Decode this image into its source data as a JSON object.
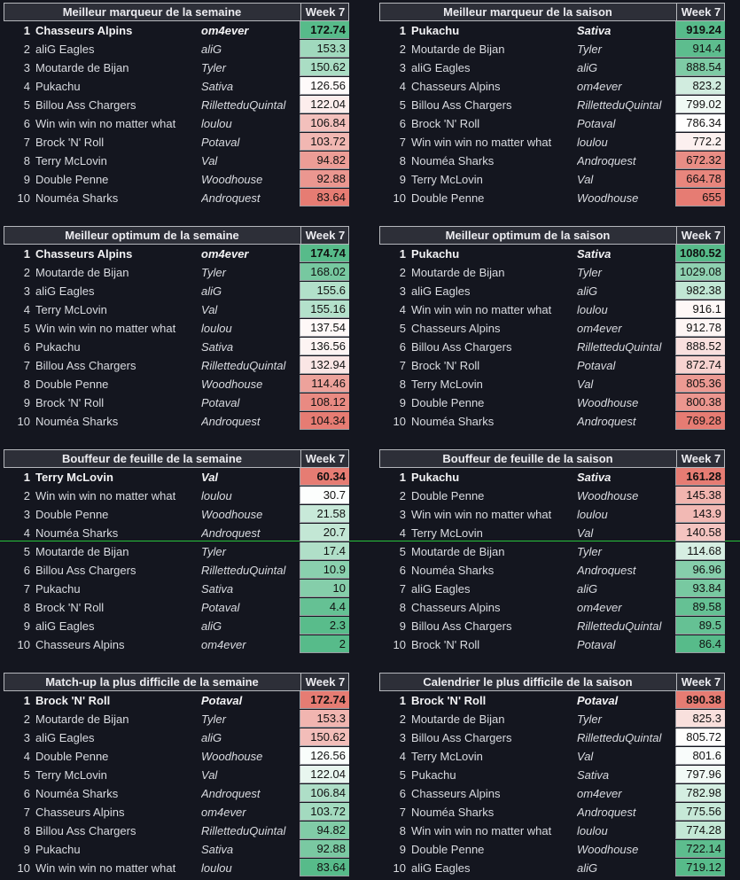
{
  "week_label": "Week 7",
  "tables": [
    {
      "title": "Meilleur marqueur de la semaine",
      "scale": "high-good",
      "rows": [
        {
          "rank": "1",
          "team": "Chasseurs Alpins",
          "owner": "om4ever",
          "value": "172.74"
        },
        {
          "rank": "2",
          "team": "aliG Eagles",
          "owner": "aliG",
          "value": "153.3"
        },
        {
          "rank": "3",
          "team": "Moutarde de Bijan",
          "owner": "Tyler",
          "value": "150.62"
        },
        {
          "rank": "4",
          "team": "Pukachu",
          "owner": "Sativa",
          "value": "126.56"
        },
        {
          "rank": "5",
          "team": "Billou Ass Chargers",
          "owner": "RilletteduQuintal",
          "value": "122.04"
        },
        {
          "rank": "6",
          "team": "Win win win no matter what",
          "owner": "loulou",
          "value": "106.84"
        },
        {
          "rank": "7",
          "team": "Brock 'N' Roll",
          "owner": "Potaval",
          "value": "103.72"
        },
        {
          "rank": "8",
          "team": "Terry McLovin",
          "owner": "Val",
          "value": "94.82"
        },
        {
          "rank": "9",
          "team": "Double Penne",
          "owner": "Woodhouse",
          "value": "92.88"
        },
        {
          "rank": "10",
          "team": "Nouméa Sharks",
          "owner": "Androquest",
          "value": "83.64"
        }
      ]
    },
    {
      "title": "Meilleur marqueur de la saison",
      "scale": "high-good",
      "rows": [
        {
          "rank": "1",
          "team": "Pukachu",
          "owner": "Sativa",
          "value": "919.24"
        },
        {
          "rank": "2",
          "team": "Moutarde de Bijan",
          "owner": "Tyler",
          "value": "914.4"
        },
        {
          "rank": "3",
          "team": "aliG Eagles",
          "owner": "aliG",
          "value": "888.54"
        },
        {
          "rank": "4",
          "team": "Chasseurs Alpins",
          "owner": "om4ever",
          "value": "823.2"
        },
        {
          "rank": "5",
          "team": "Billou Ass Chargers",
          "owner": "RilletteduQuintal",
          "value": "799.02"
        },
        {
          "rank": "6",
          "team": "Brock 'N' Roll",
          "owner": "Potaval",
          "value": "786.34"
        },
        {
          "rank": "7",
          "team": "Win win win no matter what",
          "owner": "loulou",
          "value": "772.2"
        },
        {
          "rank": "8",
          "team": "Nouméa Sharks",
          "owner": "Androquest",
          "value": "672.32"
        },
        {
          "rank": "9",
          "team": "Terry McLovin",
          "owner": "Val",
          "value": "664.78"
        },
        {
          "rank": "10",
          "team": "Double Penne",
          "owner": "Woodhouse",
          "value": "655"
        }
      ]
    },
    {
      "title": "Meilleur optimum de la semaine",
      "scale": "high-good",
      "rows": [
        {
          "rank": "1",
          "team": "Chasseurs Alpins",
          "owner": "om4ever",
          "value": "174.74"
        },
        {
          "rank": "2",
          "team": "Moutarde de Bijan",
          "owner": "Tyler",
          "value": "168.02"
        },
        {
          "rank": "3",
          "team": "aliG Eagles",
          "owner": "aliG",
          "value": "155.6"
        },
        {
          "rank": "4",
          "team": "Terry McLovin",
          "owner": "Val",
          "value": "155.16"
        },
        {
          "rank": "5",
          "team": "Win win win no matter what",
          "owner": "loulou",
          "value": "137.54"
        },
        {
          "rank": "6",
          "team": "Pukachu",
          "owner": "Sativa",
          "value": "136.56"
        },
        {
          "rank": "7",
          "team": "Billou Ass Chargers",
          "owner": "RilletteduQuintal",
          "value": "132.94"
        },
        {
          "rank": "8",
          "team": "Double Penne",
          "owner": "Woodhouse",
          "value": "114.46"
        },
        {
          "rank": "9",
          "team": "Brock 'N' Roll",
          "owner": "Potaval",
          "value": "108.12"
        },
        {
          "rank": "10",
          "team": "Nouméa Sharks",
          "owner": "Androquest",
          "value": "104.34"
        }
      ]
    },
    {
      "title": "Meilleur optimum de la saison",
      "scale": "high-good",
      "rows": [
        {
          "rank": "1",
          "team": "Pukachu",
          "owner": "Sativa",
          "value": "1080.52"
        },
        {
          "rank": "2",
          "team": "Moutarde de Bijan",
          "owner": "Tyler",
          "value": "1029.08"
        },
        {
          "rank": "3",
          "team": "aliG Eagles",
          "owner": "aliG",
          "value": "982.38"
        },
        {
          "rank": "4",
          "team": "Win win win no matter what",
          "owner": "loulou",
          "value": "916.1"
        },
        {
          "rank": "5",
          "team": "Chasseurs Alpins",
          "owner": "om4ever",
          "value": "912.78"
        },
        {
          "rank": "6",
          "team": "Billou Ass Chargers",
          "owner": "RilletteduQuintal",
          "value": "888.52"
        },
        {
          "rank": "7",
          "team": "Brock 'N' Roll",
          "owner": "Potaval",
          "value": "872.74"
        },
        {
          "rank": "8",
          "team": "Terry McLovin",
          "owner": "Val",
          "value": "805.36"
        },
        {
          "rank": "9",
          "team": "Double Penne",
          "owner": "Woodhouse",
          "value": "800.38"
        },
        {
          "rank": "10",
          "team": "Nouméa Sharks",
          "owner": "Androquest",
          "value": "769.28"
        }
      ]
    },
    {
      "title": "Bouffeur de feuille de la semaine",
      "scale": "high-bad",
      "rows": [
        {
          "rank": "1",
          "team": "Terry McLovin",
          "owner": "Val",
          "value": "60.34"
        },
        {
          "rank": "2",
          "team": "Win win win no matter what",
          "owner": "loulou",
          "value": "30.7"
        },
        {
          "rank": "3",
          "team": "Double Penne",
          "owner": "Woodhouse",
          "value": "21.58"
        },
        {
          "rank": "4",
          "team": "Nouméa Sharks",
          "owner": "Androquest",
          "value": "20.7"
        },
        {
          "rank": "5",
          "team": "Moutarde de Bijan",
          "owner": "Tyler",
          "value": "17.4"
        },
        {
          "rank": "6",
          "team": "Billou Ass Chargers",
          "owner": "RilletteduQuintal",
          "value": "10.9"
        },
        {
          "rank": "7",
          "team": "Pukachu",
          "owner": "Sativa",
          "value": "10"
        },
        {
          "rank": "8",
          "team": "Brock 'N' Roll",
          "owner": "Potaval",
          "value": "4.4"
        },
        {
          "rank": "9",
          "team": "aliG Eagles",
          "owner": "aliG",
          "value": "2.3"
        },
        {
          "rank": "10",
          "team": "Chasseurs Alpins",
          "owner": "om4ever",
          "value": "2"
        }
      ]
    },
    {
      "title": "Bouffeur de feuille de la saison",
      "scale": "high-bad",
      "rows": [
        {
          "rank": "1",
          "team": "Pukachu",
          "owner": "Sativa",
          "value": "161.28"
        },
        {
          "rank": "2",
          "team": "Double Penne",
          "owner": "Woodhouse",
          "value": "145.38"
        },
        {
          "rank": "3",
          "team": "Win win win no matter what",
          "owner": "loulou",
          "value": "143.9"
        },
        {
          "rank": "4",
          "team": "Terry McLovin",
          "owner": "Val",
          "value": "140.58"
        },
        {
          "rank": "5",
          "team": "Moutarde de Bijan",
          "owner": "Tyler",
          "value": "114.68"
        },
        {
          "rank": "6",
          "team": "Nouméa Sharks",
          "owner": "Androquest",
          "value": "96.96"
        },
        {
          "rank": "7",
          "team": "aliG Eagles",
          "owner": "aliG",
          "value": "93.84"
        },
        {
          "rank": "8",
          "team": "Chasseurs Alpins",
          "owner": "om4ever",
          "value": "89.58"
        },
        {
          "rank": "9",
          "team": "Billou Ass Chargers",
          "owner": "RilletteduQuintal",
          "value": "89.5"
        },
        {
          "rank": "10",
          "team": "Brock 'N' Roll",
          "owner": "Potaval",
          "value": "86.4"
        }
      ]
    },
    {
      "title": "Match-up la plus difficile de la semaine",
      "scale": "high-bad",
      "rows": [
        {
          "rank": "1",
          "team": "Brock 'N' Roll",
          "owner": "Potaval",
          "value": "172.74"
        },
        {
          "rank": "2",
          "team": "Moutarde de Bijan",
          "owner": "Tyler",
          "value": "153.3"
        },
        {
          "rank": "3",
          "team": "aliG Eagles",
          "owner": "aliG",
          "value": "150.62"
        },
        {
          "rank": "4",
          "team": "Double Penne",
          "owner": "Woodhouse",
          "value": "126.56"
        },
        {
          "rank": "5",
          "team": "Terry McLovin",
          "owner": "Val",
          "value": "122.04"
        },
        {
          "rank": "6",
          "team": "Nouméa Sharks",
          "owner": "Androquest",
          "value": "106.84"
        },
        {
          "rank": "7",
          "team": "Chasseurs Alpins",
          "owner": "om4ever",
          "value": "103.72"
        },
        {
          "rank": "8",
          "team": "Billou Ass Chargers",
          "owner": "RilletteduQuintal",
          "value": "94.82"
        },
        {
          "rank": "9",
          "team": "Pukachu",
          "owner": "Sativa",
          "value": "92.88"
        },
        {
          "rank": "10",
          "team": "Win win win no matter what",
          "owner": "loulou",
          "value": "83.64"
        }
      ]
    },
    {
      "title": "Calendrier le plus difficile de la saison",
      "scale": "high-bad",
      "rows": [
        {
          "rank": "1",
          "team": "Brock 'N' Roll",
          "owner": "Potaval",
          "value": "890.38"
        },
        {
          "rank": "2",
          "team": "Moutarde de Bijan",
          "owner": "Tyler",
          "value": "825.3"
        },
        {
          "rank": "3",
          "team": "Billou Ass Chargers",
          "owner": "RilletteduQuintal",
          "value": "805.72"
        },
        {
          "rank": "4",
          "team": "Terry McLovin",
          "owner": "Val",
          "value": "801.6"
        },
        {
          "rank": "5",
          "team": "Pukachu",
          "owner": "Sativa",
          "value": "797.96"
        },
        {
          "rank": "6",
          "team": "Chasseurs Alpins",
          "owner": "om4ever",
          "value": "782.98"
        },
        {
          "rank": "7",
          "team": "Nouméa Sharks",
          "owner": "Androquest",
          "value": "775.56"
        },
        {
          "rank": "8",
          "team": "Win win win no matter what",
          "owner": "loulou",
          "value": "774.28"
        },
        {
          "rank": "9",
          "team": "Double Penne",
          "owner": "Woodhouse",
          "value": "722.14"
        },
        {
          "rank": "10",
          "team": "aliG Eagles",
          "owner": "aliG",
          "value": "719.12"
        }
      ]
    }
  ],
  "colors": {
    "good": "#57bb8a",
    "neutral": "#ffffff",
    "bad": "#e67c73"
  }
}
